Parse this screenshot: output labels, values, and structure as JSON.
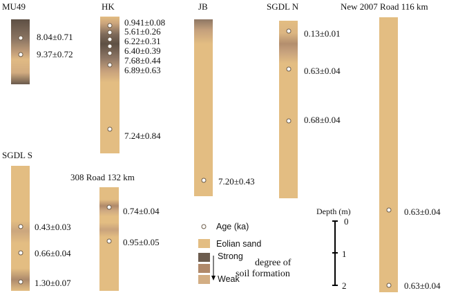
{
  "colors": {
    "eolian_sand": "#e3bd82",
    "strong": "#6c5c4e",
    "moderate": "#b0896a",
    "weak": "#d3ae84"
  },
  "sections": {
    "mu49": {
      "title": "MU49",
      "ages": [
        "8.04±0.71",
        "9.37±0.72"
      ]
    },
    "hk": {
      "title": "HK",
      "ages": [
        "0.941±0.08",
        "5.61±0.26",
        "6.22±0.31",
        "6.40±0.39",
        "7.68±0.44",
        "6.89±0.63",
        "7.24±0.84"
      ]
    },
    "jb": {
      "title": "JB",
      "ages": [
        "7.20±0.43"
      ]
    },
    "sgdl_n": {
      "title": "SGDL N",
      "ages": [
        "0.13±0.01",
        "0.63±0.04",
        "0.68±0.04"
      ]
    },
    "new2007": {
      "title": "New 2007 Road 116 km",
      "ages": [
        "0.63±0.04",
        "0.63±0.04"
      ]
    },
    "sgdl_s": {
      "title": "SGDL S",
      "ages": [
        "0.43±0.03",
        "0.66±0.04",
        "1.30±0.07"
      ]
    },
    "road308": {
      "title": "308 Road 132 km",
      "ages": [
        "0.74±0.04",
        "0.95±0.05"
      ]
    }
  },
  "legend": {
    "age_label": "Age (ka)",
    "eolian_label": "Eolian sand",
    "strong_label": "Strong",
    "weak_label": "Weak",
    "degree_label_1": "degree of",
    "degree_label_2": "soil formation"
  },
  "scale": {
    "title": "Depth (m)",
    "ticks": [
      "0",
      "1",
      "2"
    ]
  }
}
